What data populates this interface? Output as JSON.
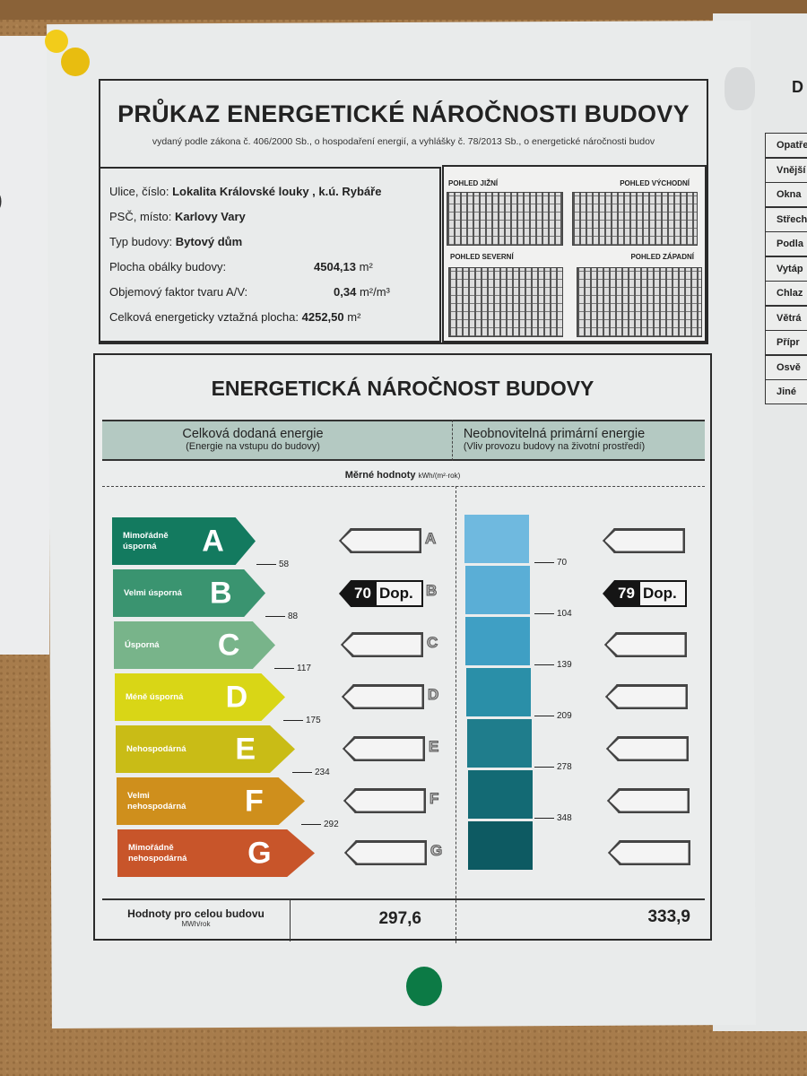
{
  "header": {
    "title": "PRŮKAZ ENERGETICKÉ NÁROČNOSTI BUDOVY",
    "subtitle": "vydaný podle zákona č. 406/2000 Sb., o hospodaření energií, a vyhlášky č. 78/2013 Sb., o energetické náročnosti budov"
  },
  "info": {
    "street_label": "Ulice, číslo:",
    "street": "Lokalita  Královské louky , k.ú. Rybáře",
    "city_label": "PSČ, místo:",
    "city": "Karlovy Vary",
    "type_label": "Typ budovy:",
    "type": "Bytový dům",
    "envelope_label": "Plocha obálky budovy:",
    "envelope": "4504,13",
    "envelope_unit": "m²",
    "shape_label": "Objemový faktor tvaru A/V:",
    "shape": "0,34",
    "shape_unit": "m²/m³",
    "area_label": "Celková energeticky vztažná plocha:",
    "area": "4252,50",
    "area_unit": "m²"
  },
  "views": [
    "POHLED JIŽNÍ",
    "POHLED VÝCHODNÍ",
    "POHLED SEVERNÍ",
    "POHLED ZÁPADNÍ"
  ],
  "energy": {
    "title": "ENERGETICKÁ NÁROČNOST BUDOVY",
    "left_title": "Celková dodaná energie",
    "left_sub": "(Energie na vstupu do budovy)",
    "right_title": "Neobnovitelná primární energie",
    "right_sub": "(Vliv provozu budovy na životní prostředí)",
    "units_label": "Měrné hodnoty",
    "units": "kWh/(m²·rok)",
    "classes": [
      {
        "letter": "A",
        "label": "Mimořádně úsporná",
        "color": "#137a5f"
      },
      {
        "letter": "B",
        "label": "Velmi úsporná",
        "color": "#3a9470"
      },
      {
        "letter": "C",
        "label": "Úsporná",
        "color": "#78b48a"
      },
      {
        "letter": "D",
        "label": "Méně úsporná",
        "color": "#d9d616"
      },
      {
        "letter": "E",
        "label": "Nehospodárná",
        "color": "#c9bc16"
      },
      {
        "letter": "F",
        "label": "Velmi nehospodárná",
        "color": "#cf8f1c"
      },
      {
        "letter": "G",
        "label": "Mimořádně nehospodárná",
        "color": "#c8552a"
      }
    ],
    "left_thresholds": [
      "58",
      "88",
      "117",
      "175",
      "234",
      "292"
    ],
    "right_thresholds": [
      "70",
      "104",
      "139",
      "209",
      "278",
      "348"
    ],
    "right_colors": [
      "#6fb9df",
      "#5aaed6",
      "#3f9fc4",
      "#2a8fa8",
      "#1f7d8c",
      "#136a74",
      "#0d5a62"
    ],
    "left_rating": {
      "class": "B",
      "value": "70",
      "label": "Dop."
    },
    "right_rating": {
      "class": "B",
      "value": "79",
      "label": "Dop."
    },
    "totals_label": "Hodnoty pro celou budovu",
    "totals_unit": "MWh/rok",
    "total_left": "297,6",
    "total_right": "333,9"
  },
  "right_paper": {
    "heading": "D",
    "rows": [
      "Opatře",
      "Vnější",
      "Okna",
      "Střech",
      "Podla",
      "Vytáp",
      "Chlaz",
      "Větrá",
      "Přípr",
      "Osvě",
      "Jiné"
    ]
  }
}
